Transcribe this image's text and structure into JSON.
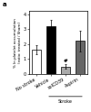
{
  "chart_data": {
    "type": "bar",
    "categories": [
      "No stroke",
      "Vehicle",
      "solCD39",
      "Aspirin"
    ],
    "values": [
      1.6,
      3.2,
      0.5,
      2.2
    ],
    "errors": [
      0.3,
      0.4,
      0.15,
      0.7
    ],
    "colors": [
      "white",
      "black",
      "#aaaaaa",
      "#666666"
    ],
    "y_label": "% In platelet accumulation\n(ratio: treated / Sham)",
    "ylim": [
      0,
      4.2
    ],
    "yticks": [
      0,
      1,
      2,
      3,
      4
    ],
    "annotations": [
      {
        "text": "a"
      },
      {
        "text": "#",
        "category": "solCD39"
      },
      {
        "text": "Stroke",
        "categories": [
          "Vehicle",
          "solCD39",
          "Aspirin"
        ]
      }
    ]
  }
}
